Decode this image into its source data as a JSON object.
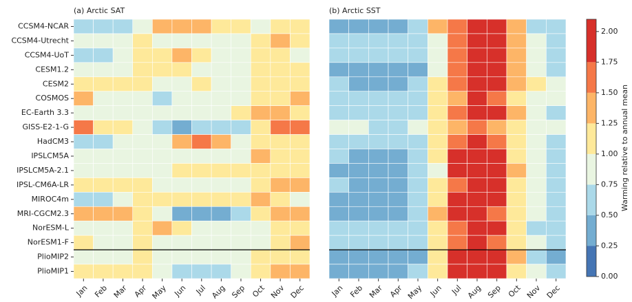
{
  "chart_data": [
    {
      "type": "heatmap",
      "title": "(a) Arctic SAT",
      "categories": [
        "Jan",
        "Feb",
        "Mar",
        "Apr",
        "May",
        "Jun",
        "Jul",
        "Aug",
        "Sep",
        "Oct",
        "Nov",
        "Dec"
      ],
      "rows": [
        "CCSM4-NCAR",
        "CCSM4-Utrecht",
        "CCSM4-UoT",
        "CESM1.2",
        "CESM2",
        "COSMOS",
        "EC-Earth 3.3",
        "GISS-E2-1-G",
        "HadCM3",
        "IPSLCM5A",
        "IPSLCM5A-2.1",
        "IPSL-CM6A-LR",
        "MIROC4m",
        "MRI-CGCM2.3",
        "NorESM-L",
        "NorESM1-F",
        "PlioMIP2",
        "PlioMIP1"
      ],
      "values": [
        [
          0.6,
          0.6,
          0.6,
          0.9,
          1.4,
          1.4,
          1.4,
          1.1,
          1.1,
          0.9,
          1.1,
          1.1
        ],
        [
          0.9,
          0.9,
          0.9,
          1.1,
          0.9,
          0.9,
          0.9,
          0.9,
          0.9,
          1.1,
          1.4,
          1.1
        ],
        [
          0.6,
          0.6,
          0.9,
          1.1,
          1.1,
          1.4,
          1.1,
          0.9,
          0.9,
          1.1,
          1.1,
          0.9
        ],
        [
          0.9,
          0.9,
          0.9,
          1.1,
          1.1,
          1.1,
          0.9,
          0.9,
          0.9,
          1.1,
          1.1,
          1.1
        ],
        [
          1.1,
          1.1,
          1.1,
          1.1,
          0.9,
          0.9,
          1.1,
          0.9,
          0.9,
          1.1,
          1.1,
          1.1
        ],
        [
          1.4,
          0.9,
          0.9,
          0.9,
          0.6,
          0.9,
          0.9,
          0.9,
          0.9,
          1.1,
          1.1,
          1.4
        ],
        [
          0.9,
          0.9,
          0.9,
          0.9,
          0.9,
          0.9,
          0.9,
          0.9,
          1.1,
          1.4,
          1.4,
          1.1
        ],
        [
          1.6,
          1.1,
          1.1,
          0.9,
          0.6,
          0.4,
          0.6,
          0.6,
          0.6,
          1.1,
          1.6,
          1.6
        ],
        [
          0.6,
          0.6,
          0.9,
          0.9,
          0.9,
          1.4,
          1.6,
          1.4,
          0.9,
          1.1,
          1.1,
          1.1
        ],
        [
          0.9,
          0.9,
          0.9,
          0.9,
          0.9,
          0.9,
          0.9,
          0.9,
          0.9,
          1.4,
          1.1,
          1.1
        ],
        [
          0.9,
          0.9,
          0.9,
          0.9,
          0.9,
          1.1,
          1.1,
          1.1,
          1.1,
          1.1,
          1.1,
          1.1
        ],
        [
          1.1,
          1.1,
          1.1,
          1.1,
          0.9,
          0.9,
          0.9,
          0.9,
          0.9,
          1.1,
          1.4,
          1.4
        ],
        [
          0.6,
          0.6,
          0.9,
          1.1,
          1.1,
          1.1,
          1.1,
          1.1,
          1.1,
          1.4,
          1.1,
          0.9
        ],
        [
          1.4,
          1.4,
          1.4,
          1.1,
          0.9,
          0.4,
          0.4,
          0.4,
          0.6,
          1.1,
          1.4,
          1.4
        ],
        [
          0.9,
          0.9,
          0.9,
          1.1,
          1.4,
          1.1,
          0.9,
          0.9,
          0.9,
          0.9,
          1.1,
          1.1
        ],
        [
          1.1,
          0.9,
          0.9,
          1.1,
          0.9,
          0.9,
          0.9,
          0.9,
          0.9,
          0.9,
          1.1,
          1.4
        ],
        [
          0.9,
          0.9,
          0.9,
          1.1,
          0.9,
          0.9,
          0.9,
          0.9,
          0.9,
          1.1,
          1.1,
          1.1
        ],
        [
          1.1,
          1.1,
          1.1,
          1.1,
          0.9,
          0.6,
          0.6,
          0.6,
          0.9,
          1.1,
          1.4,
          1.4
        ]
      ]
    },
    {
      "type": "heatmap",
      "title": "(b) Arctic SST",
      "categories": [
        "Jan",
        "Feb",
        "Mar",
        "Apr",
        "May",
        "Jun",
        "Jul",
        "Aug",
        "Sep",
        "Oct",
        "Nov",
        "Dec"
      ],
      "values": [
        [
          0.4,
          0.4,
          0.4,
          0.4,
          0.6,
          1.4,
          1.6,
          1.9,
          1.9,
          1.4,
          0.6,
          0.6
        ],
        [
          0.6,
          0.6,
          0.6,
          0.6,
          0.6,
          0.9,
          1.6,
          1.9,
          1.9,
          1.4,
          0.9,
          0.6
        ],
        [
          0.6,
          0.6,
          0.6,
          0.6,
          0.6,
          0.9,
          1.6,
          1.9,
          1.9,
          1.4,
          0.9,
          0.6
        ],
        [
          0.4,
          0.4,
          0.4,
          0.4,
          0.4,
          0.9,
          1.6,
          1.9,
          1.9,
          1.4,
          0.9,
          0.6
        ],
        [
          0.6,
          0.4,
          0.4,
          0.4,
          0.6,
          1.1,
          1.6,
          1.9,
          1.9,
          1.4,
          1.1,
          0.9
        ],
        [
          0.6,
          0.6,
          0.6,
          0.6,
          0.6,
          1.1,
          1.4,
          1.9,
          1.6,
          1.1,
          0.9,
          0.9
        ],
        [
          0.6,
          0.6,
          0.6,
          0.6,
          0.6,
          1.1,
          1.6,
          1.9,
          1.9,
          1.4,
          0.9,
          0.6
        ],
        [
          0.9,
          0.9,
          0.6,
          0.6,
          0.9,
          1.1,
          1.4,
          1.6,
          1.4,
          1.1,
          0.9,
          0.9
        ],
        [
          0.6,
          0.6,
          0.6,
          0.6,
          0.6,
          1.1,
          1.6,
          1.9,
          1.6,
          1.1,
          0.9,
          0.6
        ],
        [
          0.6,
          0.4,
          0.4,
          0.4,
          0.6,
          1.1,
          1.9,
          1.9,
          1.9,
          1.1,
          0.9,
          0.6
        ],
        [
          0.4,
          0.4,
          0.4,
          0.4,
          0.6,
          0.9,
          1.9,
          1.9,
          1.9,
          1.4,
          0.9,
          0.6
        ],
        [
          0.6,
          0.4,
          0.4,
          0.4,
          0.6,
          1.1,
          1.6,
          1.9,
          1.9,
          1.1,
          0.9,
          0.6
        ],
        [
          0.4,
          0.4,
          0.4,
          0.4,
          0.6,
          1.1,
          1.9,
          1.9,
          1.9,
          1.1,
          0.9,
          0.6
        ],
        [
          0.4,
          0.4,
          0.4,
          0.4,
          0.6,
          1.4,
          1.9,
          1.9,
          1.6,
          1.1,
          0.9,
          0.6
        ],
        [
          0.6,
          0.6,
          0.6,
          0.6,
          0.6,
          1.1,
          1.6,
          1.9,
          1.9,
          1.1,
          0.6,
          0.6
        ],
        [
          0.6,
          0.6,
          0.6,
          0.6,
          0.6,
          1.1,
          1.6,
          1.9,
          1.6,
          1.1,
          0.9,
          0.6
        ],
        [
          0.4,
          0.4,
          0.4,
          0.4,
          0.4,
          1.1,
          1.9,
          1.9,
          1.9,
          1.4,
          0.6,
          0.4
        ],
        [
          0.4,
          0.4,
          0.4,
          0.4,
          0.6,
          1.1,
          1.9,
          1.9,
          1.9,
          1.1,
          0.9,
          0.6
        ]
      ]
    },
    {
      "type": "colorbar",
      "label": "Warming relative to annual mean",
      "levels": [
        0,
        0.25,
        0.5,
        0.75,
        1.0,
        1.25,
        1.5,
        1.75,
        2.1
      ],
      "colors": [
        "#4575b4",
        "#74add1",
        "#abd9e9",
        "#e9f5e1",
        "#fee99a",
        "#fdb567",
        "#f57848",
        "#d7302a"
      ],
      "ylim": [
        0,
        2.1
      ],
      "yticks": [
        {
          "value": 0,
          "label": "0.00"
        },
        {
          "value": 0.25,
          "label": "0.25"
        },
        {
          "value": 0.5,
          "label": "0.50"
        },
        {
          "value": 0.75,
          "label": "0.75"
        },
        {
          "value": 1,
          "label": "1.00"
        },
        {
          "value": 1.25,
          "label": "1.25"
        },
        {
          "value": 1.5,
          "label": "1.50"
        },
        {
          "value": 1.75,
          "label": "1.75"
        },
        {
          "value": 2,
          "label": "2.00"
        }
      ]
    }
  ]
}
